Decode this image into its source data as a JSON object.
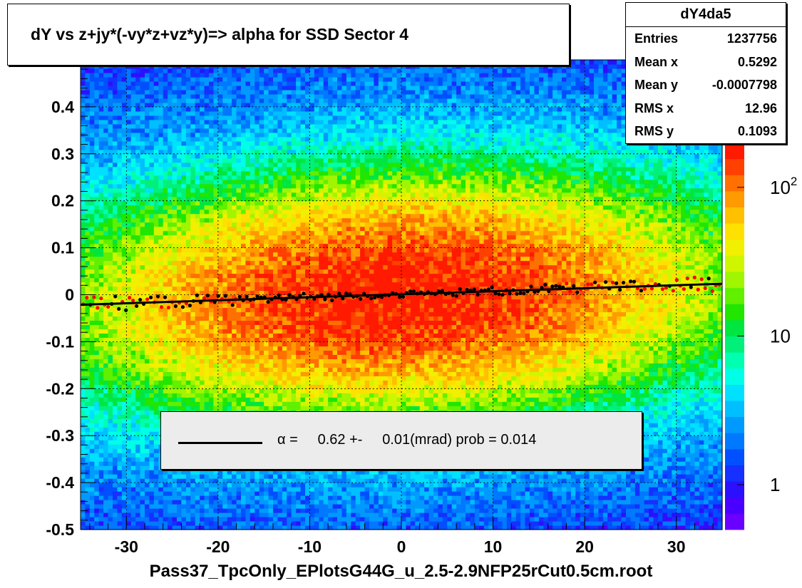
{
  "title": "dY vs  z+jy*(-vy*z+vz*y)=> alpha for SSD Sector 4",
  "stats": {
    "name": "dY4da5",
    "rows": [
      {
        "label": "Entries",
        "value": "1237756"
      },
      {
        "label": "Mean x",
        "value": "0.5292"
      },
      {
        "label": "Mean y",
        "value": "-0.0007798"
      },
      {
        "label": "RMS x",
        "value": "12.96"
      },
      {
        "label": "RMS y",
        "value": "0.1093"
      }
    ]
  },
  "legend": {
    "fit_text": "α =     0.62 +-     0.01(mrad) prob = 0.014"
  },
  "xlabel": "Pass37_TpcOnly_EPlotsG44G_u_2.5-2.9NFP25rCut0.5cm.root",
  "colors": {
    "fit_line": "#000000",
    "profile_points": "#000000",
    "profile_points_alt": "#ff0000"
  },
  "chart_data": {
    "type": "heatmap",
    "x_range": [
      -35,
      35
    ],
    "y_range": [
      -0.5,
      0.5
    ],
    "x_ticks": [
      "-30",
      "-20",
      "-10",
      "0",
      "10",
      "20",
      "30"
    ],
    "x_tick_values": [
      -30,
      -20,
      -10,
      0,
      10,
      20,
      30
    ],
    "y_ticks": [
      "-0.5",
      "-0.4",
      "-0.3",
      "-0.2",
      "-0.1",
      "0",
      "0.1",
      "0.2",
      "0.3",
      "0.4"
    ],
    "y_tick_values": [
      -0.5,
      -0.4,
      -0.3,
      -0.2,
      -0.1,
      0,
      0.1,
      0.2,
      0.3,
      0.4
    ],
    "grid": true,
    "z_scale": "log",
    "z_range": [
      0.5,
      200
    ],
    "z_ticks": [
      {
        "label": "1",
        "value": 1
      },
      {
        "label": "10",
        "value": 10
      },
      {
        "label": "10",
        "sup": "2",
        "value": 100
      }
    ],
    "fit": {
      "slope_per_unit_x": 0.00064,
      "intercept": 0.001
    },
    "density_model": {
      "center_y": 0.0,
      "sigma_x": 16,
      "sigma_y": 0.11,
      "peak": 200
    }
  }
}
